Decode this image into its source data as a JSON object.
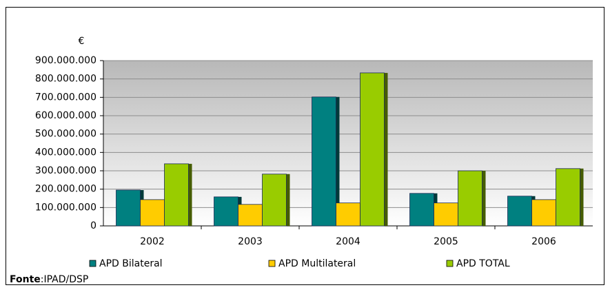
{
  "chart_data": {
    "type": "bar",
    "y_label": "€",
    "categories": [
      "2002",
      "2003",
      "2004",
      "2005",
      "2006"
    ],
    "series": [
      {
        "name": "APD Bilateral",
        "color": "#008080",
        "values": [
          195000000,
          158000000,
          702000000,
          177000000,
          162000000
        ]
      },
      {
        "name": "APD Multilateral",
        "color": "#ffcc00",
        "values": [
          143000000,
          117000000,
          125000000,
          125000000,
          143000000
        ]
      },
      {
        "name": "APD TOTAL",
        "color": "#99cc00",
        "values": [
          338000000,
          282000000,
          833000000,
          300000000,
          312000000
        ]
      }
    ],
    "ylim": [
      0,
      900000000
    ],
    "yticks": [
      0,
      {
        "value": 100000000,
        "label": "100.000.000"
      },
      {
        "value": 200000000,
        "label": "200.000.000"
      },
      {
        "value": 300000000,
        "label": "300.000.000"
      },
      {
        "value": 400000000,
        "label": "400.000.000"
      },
      {
        "value": 500000000,
        "label": "500.000.000"
      },
      {
        "value": 600000000,
        "label": "600.000.000"
      },
      {
        "value": 700000000,
        "label": "700.000.000"
      },
      {
        "value": 800000000,
        "label": "800.000.000"
      },
      {
        "value": 900000000,
        "label": "900.000.000"
      }
    ],
    "grid": true,
    "legend": "bottom",
    "source_label": "Fonte",
    "source_text": ":IPAD/DSP"
  }
}
